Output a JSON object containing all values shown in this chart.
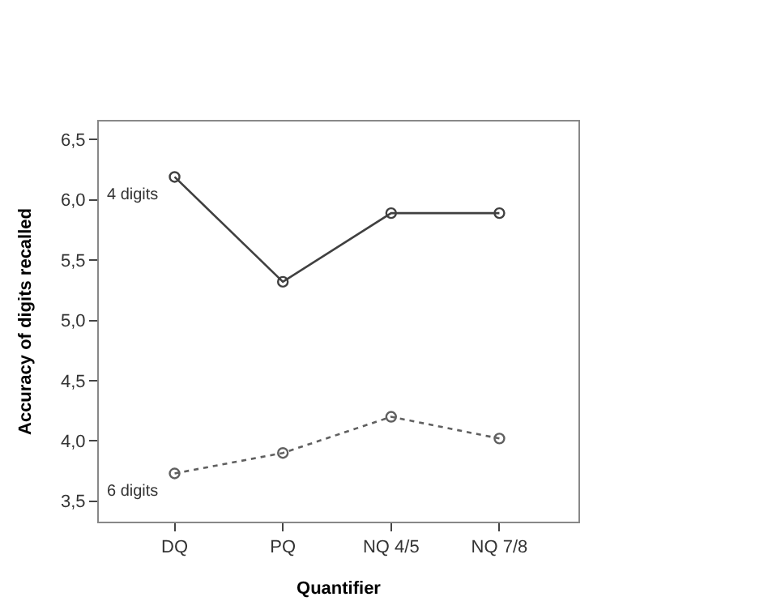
{
  "chart_data": {
    "type": "line",
    "xlabel": "Quantifier",
    "ylabel": "Accuracy of digits recalled",
    "categories": [
      "DQ",
      "PQ",
      "NQ 4/5",
      "NQ 7/8"
    ],
    "series": [
      {
        "name": "4 digits",
        "color": "#404040",
        "values": [
          6.19,
          5.32,
          5.89,
          5.89
        ],
        "line_style": "solid"
      },
      {
        "name": "6 digits",
        "color": "#606060",
        "values": [
          3.73,
          3.9,
          4.2,
          4.02
        ],
        "line_style": "dotted"
      }
    ],
    "ylim": [
      3.33,
      6.65
    ],
    "yticks": [
      {
        "value": 3.5,
        "label": "3,5"
      },
      {
        "value": 4.0,
        "label": "4,0"
      },
      {
        "value": 4.5,
        "label": "4,5"
      },
      {
        "value": 5.0,
        "label": "5,0"
      },
      {
        "value": 5.5,
        "label": "5,5"
      },
      {
        "value": 6.0,
        "label": "6,0"
      },
      {
        "value": 6.5,
        "label": "6,5"
      }
    ],
    "marker": "circle",
    "legend": false
  }
}
